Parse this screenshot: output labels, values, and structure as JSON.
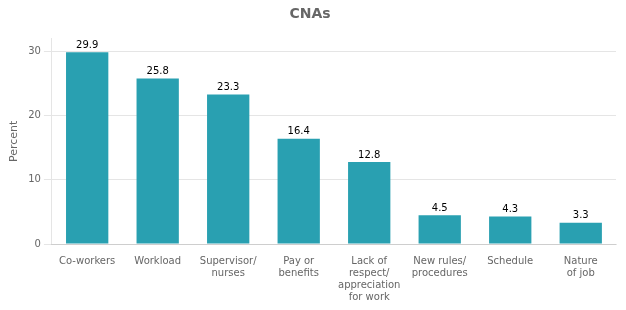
{
  "chart_data": {
    "type": "bar",
    "title": "CNAs",
    "categories": [
      "Co-workers",
      "Workload",
      "Supervisor/\nnurses",
      "Pay or\nbenefits",
      "Lack of\nrespect/\nappreciation\nfor work",
      "New rules/\nprocedures",
      "Schedule",
      "Nature\nof job"
    ],
    "values": [
      29.9,
      25.8,
      23.3,
      16.4,
      12.8,
      4.5,
      4.3,
      3.3
    ],
    "color": "#29a0b1",
    "ylabel": "Percent",
    "ylim": [
      0,
      32
    ],
    "yticks": [
      0,
      10,
      20,
      30
    ],
    "grid": true,
    "data_labels": true
  }
}
